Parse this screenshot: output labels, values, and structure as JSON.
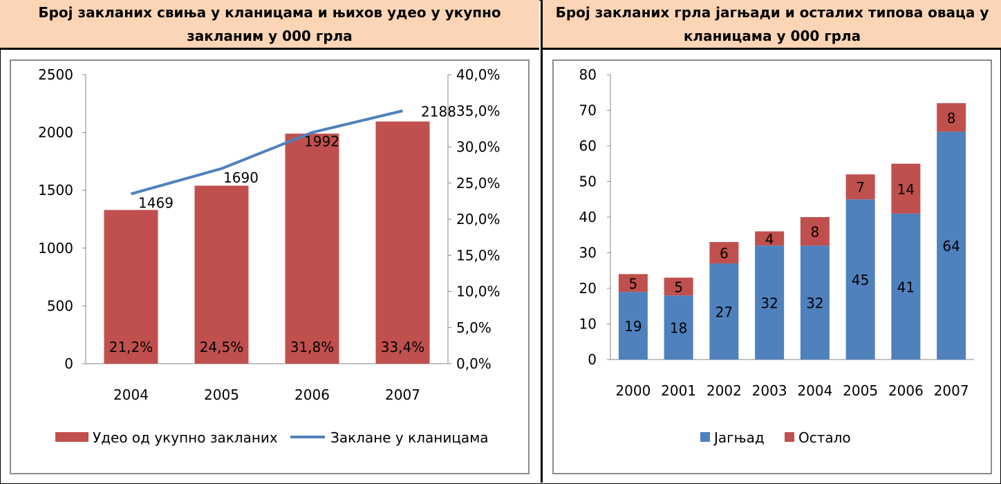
{
  "left_panel": {
    "title": "Број закланих свиња у кланицама и њихов удео у укупно закланим у 000 грла"
  },
  "right_panel": {
    "title": "Број закланих грла јагњади и осталих типова оваца у кланицама у 000 грла"
  },
  "chart_data": [
    {
      "type": "bar+line",
      "categories": [
        "2004",
        "2005",
        "2006",
        "2007"
      ],
      "y_left_ticks": [
        "2500",
        "2000",
        "1500",
        "1000",
        "500",
        "0"
      ],
      "y_right_ticks": [
        "40,0%",
        "35,0%",
        "30,0%",
        "25,0%",
        "20,0%",
        "15,0%",
        "10,0%",
        "5,0%",
        "0,0%"
      ],
      "ylim_left": [
        0,
        2500
      ],
      "ylim_right": [
        0,
        40
      ],
      "bars": {
        "name": "Удео од укупно закланих",
        "color": "#c0504d",
        "values": [
          1330,
          1540,
          1990,
          2095
        ],
        "labels": [
          "21,2%",
          "24,5%",
          "31,8%",
          "33,4%"
        ]
      },
      "line": {
        "name": "Заклане у кланицама",
        "color": "#4f81bd",
        "values_pct": [
          23.5,
          27.0,
          32.0,
          35.0
        ],
        "labels": [
          "1469",
          "1690",
          "1992",
          "2188"
        ]
      }
    },
    {
      "type": "stacked-bar",
      "categories": [
        "2000",
        "2001",
        "2002",
        "2003",
        "2004",
        "2005",
        "2006",
        "2007"
      ],
      "y_ticks": [
        "80",
        "70",
        "60",
        "50",
        "40",
        "30",
        "20",
        "10",
        "0"
      ],
      "ylim": [
        0,
        80
      ],
      "series": [
        {
          "name": "Јагњад",
          "color": "#4f81bd",
          "values": [
            19,
            18,
            27,
            32,
            32,
            45,
            41,
            64
          ]
        },
        {
          "name": "Остало",
          "color": "#c0504d",
          "values": [
            5,
            5,
            6,
            4,
            8,
            7,
            14,
            8
          ]
        }
      ]
    }
  ]
}
